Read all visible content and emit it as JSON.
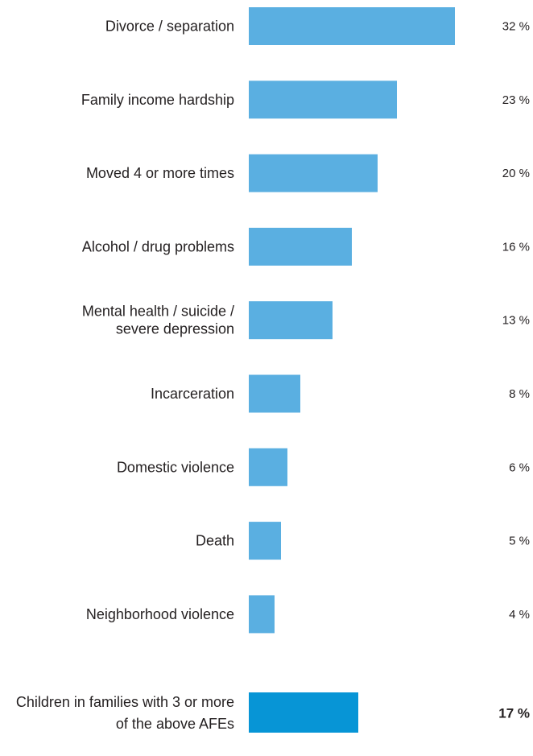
{
  "chart_data": {
    "type": "bar",
    "orientation": "horizontal",
    "categories": [
      [
        "Divorce / separation"
      ],
      [
        "Family income hardship"
      ],
      [
        "Moved 4 or more times"
      ],
      [
        "Alcohol / drug problems"
      ],
      [
        "Mental health / suicide /",
        "severe depression"
      ],
      [
        "Incarceration"
      ],
      [
        "Domestic violence"
      ],
      [
        "Death"
      ],
      [
        "Neighborhood violence"
      ]
    ],
    "values": [
      32,
      23,
      20,
      16,
      13,
      8,
      6,
      5,
      4
    ],
    "value_labels": [
      "32 %",
      "23 %",
      "20 %",
      "16 %",
      "13 %",
      "8 %",
      "6 %",
      "5 %",
      "4 %"
    ],
    "summary": {
      "label": [
        "Children in families with 3 or more",
        "of the above AFEs"
      ],
      "value": 17,
      "value_label": "17 %"
    },
    "colors": {
      "bar": "#5aafe1",
      "summary_bar": "#0795d6"
    }
  }
}
